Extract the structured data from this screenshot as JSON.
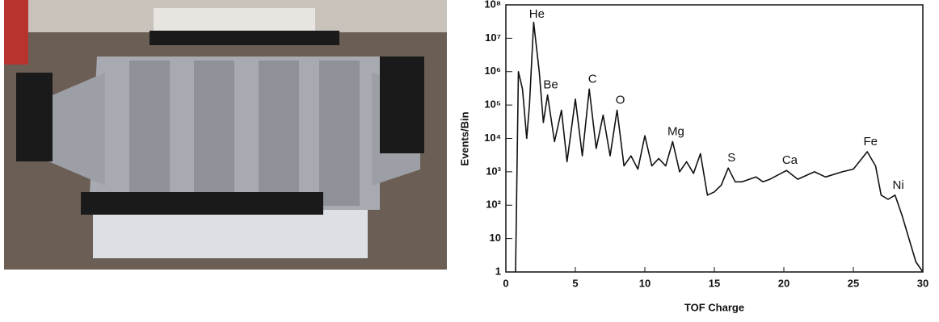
{
  "chart_data": {
    "type": "line",
    "xlabel": "TOF Charge",
    "ylabel": "Events/Bin",
    "log_scale": "y",
    "color": "#111111",
    "xlim": [
      0,
      30
    ],
    "xticks": [
      0,
      5,
      10,
      15,
      20,
      25,
      30
    ],
    "ylim": [
      1,
      100000000
    ],
    "yticks": [
      1,
      10,
      {
        "value": 100,
        "label": "10²"
      },
      {
        "value": 1000,
        "label": "10³"
      },
      {
        "value": 10000,
        "label": "10⁴"
      },
      {
        "value": 100000,
        "label": "10⁵"
      },
      {
        "value": 1000000,
        "label": "10⁶"
      },
      {
        "value": 10000000,
        "label": "10⁷"
      },
      {
        "value": 100000000,
        "label": "10⁸"
      }
    ],
    "x": [
      0.7,
      0.9,
      1.2,
      1.5,
      1.7,
      2.0,
      2.4,
      2.7,
      3.0,
      3.5,
      4.0,
      4.4,
      5.0,
      5.5,
      6.0,
      6.5,
      7.0,
      7.5,
      8.0,
      8.5,
      9.0,
      9.5,
      10.0,
      10.5,
      11.0,
      11.5,
      12.0,
      12.5,
      13.0,
      13.5,
      14.0,
      14.5,
      15.0,
      15.5,
      16.0,
      16.5,
      17.0,
      18.0,
      18.5,
      19.0,
      20.2,
      21.0,
      22.2,
      23.0,
      24.2,
      25.0,
      26.0,
      26.6,
      27.0,
      27.5,
      28.0,
      28.5,
      29.0,
      29.5,
      30.0
    ],
    "values": [
      1,
      1000000,
      300000,
      10000,
      100000,
      30000000,
      1000000,
      30000,
      200000,
      8000,
      70000,
      2000,
      150000,
      3000,
      300000,
      5000,
      50000,
      3000,
      70000,
      1500,
      3000,
      1200,
      12000,
      1500,
      2500,
      1500,
      8000,
      1000,
      2000,
      900,
      3500,
      200,
      250,
      400,
      1300,
      500,
      500,
      700,
      500,
      600,
      1100,
      600,
      1000,
      700,
      1000,
      1200,
      4000,
      1500,
      200,
      150,
      200,
      50,
      10,
      2,
      1
    ],
    "annotations": [
      {
        "text": "He",
        "x": 2
      },
      {
        "text": "Be",
        "x": 3
      },
      {
        "text": "C",
        "x": 6
      },
      {
        "text": "O",
        "x": 8
      },
      {
        "text": "Mg",
        "x": 12
      },
      {
        "text": "S",
        "x": 16
      },
      {
        "text": "Ca",
        "x": 20.2
      },
      {
        "text": "Fe",
        "x": 26
      },
      {
        "text": "Ni",
        "x": 28
      }
    ]
  }
}
